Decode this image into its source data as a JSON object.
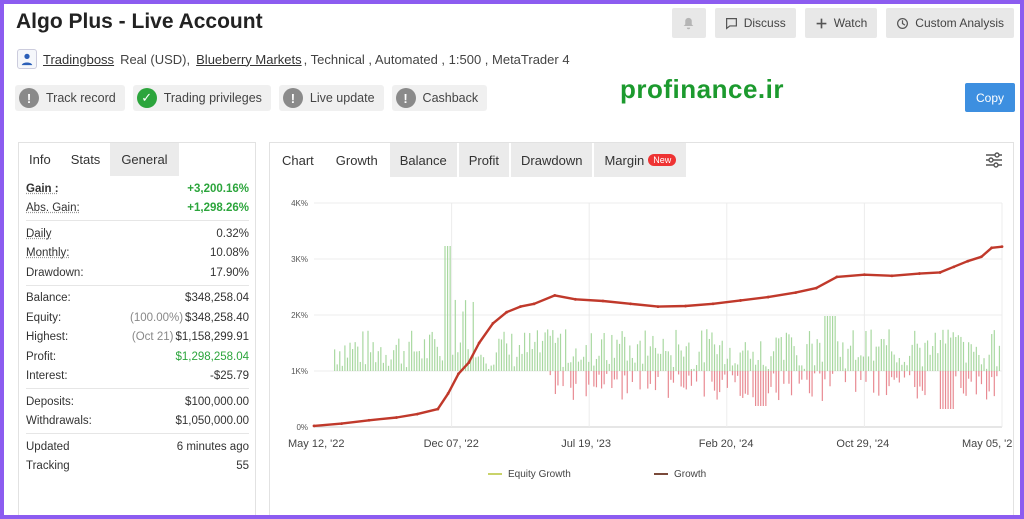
{
  "header": {
    "title": "Algo Plus - Live Account",
    "actions": {
      "bell_icon": "bell-icon",
      "discuss": "Discuss",
      "watch": "Watch",
      "custom_analysis": "Custom Analysis"
    }
  },
  "meta": {
    "user": "Tradingboss",
    "account_type": "Real (USD),",
    "broker": "Blueberry Markets",
    "details": ", Technical , Automated , 1:500 , MetaTrader 4"
  },
  "badges": [
    {
      "label": "Track record",
      "status": "!"
    },
    {
      "label": "Trading privileges",
      "status": "✓"
    },
    {
      "label": "Live update",
      "status": "!"
    },
    {
      "label": "Cashback",
      "status": "!"
    }
  ],
  "watermark": "profinance.ir",
  "copy_label": "Copy",
  "left_tabs": {
    "info": "Info",
    "stats": "Stats",
    "general": "General"
  },
  "stats": {
    "gain_label": "Gain :",
    "gain_value": "+3,200.16%",
    "abs_gain_label": "Abs. Gain:",
    "abs_gain_value": "+1,298.26%",
    "daily_label": "Daily",
    "daily_value": "0.32%",
    "monthly_label": "Monthly:",
    "monthly_value": "10.08%",
    "drawdown_label": "Drawdown:",
    "drawdown_value": "17.90%",
    "balance_label": "Balance:",
    "balance_value": "$348,258.04",
    "equity_label": "Equity:",
    "equity_pct": "(100.00%)",
    "equity_value": "$348,258.40",
    "highest_label": "Highest:",
    "highest_date": "(Oct 21)",
    "highest_value": "$1,158,299.91",
    "profit_label": "Profit:",
    "profit_value": "$1,298,258.04",
    "interest_label": "Interest:",
    "interest_value": "-$25.79",
    "deposits_label": "Deposits:",
    "deposits_value": "$100,000.00",
    "withdrawals_label": "Withdrawals:",
    "withdrawals_value": "$1,050,000.00",
    "updated_label": "Updated",
    "updated_value": "6 minutes ago",
    "tracking_label": "Tracking",
    "tracking_value": "55"
  },
  "chart_tabs": {
    "chart": "Chart",
    "growth": "Growth",
    "balance": "Balance",
    "profit": "Profit",
    "drawdown": "Drawdown",
    "margin": "Margin",
    "new_badge": "New"
  },
  "chart_data": {
    "type": "line",
    "x_ticks": [
      "May 12, '22",
      "Dec 07, '22",
      "Jul 19, '23",
      "Feb 20, '24",
      "Oct 29, '24",
      "May 05, '25"
    ],
    "y_ticks": [
      "0%",
      "1K%",
      "2K%",
      "3K%",
      "4K%"
    ],
    "ylim": [
      0,
      4000
    ],
    "grid": true,
    "legend": "bottom-center",
    "series": [
      {
        "name": "Equity Growth",
        "type": "bar",
        "color": "#a8d8a0",
        "note_color_negative": "#e88a92"
      },
      {
        "name": "Growth",
        "type": "line",
        "color": "#c0392b",
        "x": [
          0,
          0.04,
          0.08,
          0.12,
          0.15,
          0.18,
          0.195,
          0.21,
          0.225,
          0.24,
          0.26,
          0.28,
          0.3,
          0.32,
          0.35,
          0.38,
          0.42,
          0.46,
          0.5,
          0.54,
          0.58,
          0.62,
          0.66,
          0.7,
          0.73,
          0.76,
          0.8,
          0.84,
          0.88,
          0.91,
          0.93,
          0.95,
          0.97,
          0.985,
          1.0
        ],
        "values": [
          20,
          60,
          120,
          170,
          230,
          320,
          600,
          950,
          1150,
          1500,
          1850,
          2050,
          2150,
          2200,
          2350,
          2280,
          2250,
          2200,
          2150,
          2160,
          2200,
          2260,
          2320,
          2400,
          2480,
          2680,
          2720,
          2700,
          2740,
          2760,
          2860,
          2960,
          3040,
          3200,
          3220
        ]
      }
    ]
  }
}
